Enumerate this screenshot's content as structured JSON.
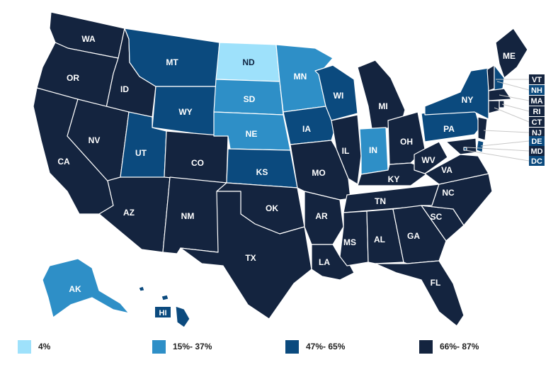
{
  "colors": {
    "bin1": "#9ee1fb",
    "bin2": "#2e8fc7",
    "bin3": "#0b4a7e",
    "bin4": "#14243f",
    "border": "#ffffff",
    "leader": "#c9c9c9"
  },
  "legend": [
    {
      "label": "4%",
      "color_key": "bin1"
    },
    {
      "label": "15%- 37%",
      "color_key": "bin2"
    },
    {
      "label": "47%- 65%",
      "color_key": "bin3"
    },
    {
      "label": "66%- 87%",
      "color_key": "bin4"
    }
  ],
  "states": [
    {
      "abbr": "WA",
      "bin": 4
    },
    {
      "abbr": "OR",
      "bin": 4
    },
    {
      "abbr": "CA",
      "bin": 4
    },
    {
      "abbr": "ID",
      "bin": 4
    },
    {
      "abbr": "NV",
      "bin": 4
    },
    {
      "abbr": "AZ",
      "bin": 4
    },
    {
      "abbr": "MT",
      "bin": 3
    },
    {
      "abbr": "WY",
      "bin": 3
    },
    {
      "abbr": "UT",
      "bin": 3
    },
    {
      "abbr": "CO",
      "bin": 4
    },
    {
      "abbr": "NM",
      "bin": 4
    },
    {
      "abbr": "ND",
      "bin": 1
    },
    {
      "abbr": "SD",
      "bin": 2
    },
    {
      "abbr": "NE",
      "bin": 2
    },
    {
      "abbr": "KS",
      "bin": 3
    },
    {
      "abbr": "OK",
      "bin": 4
    },
    {
      "abbr": "TX",
      "bin": 4
    },
    {
      "abbr": "MN",
      "bin": 2
    },
    {
      "abbr": "IA",
      "bin": 3
    },
    {
      "abbr": "MO",
      "bin": 4
    },
    {
      "abbr": "AR",
      "bin": 4
    },
    {
      "abbr": "LA",
      "bin": 4
    },
    {
      "abbr": "WI",
      "bin": 3
    },
    {
      "abbr": "IL",
      "bin": 4
    },
    {
      "abbr": "MI",
      "bin": 4
    },
    {
      "abbr": "IN",
      "bin": 2
    },
    {
      "abbr": "OH",
      "bin": 4
    },
    {
      "abbr": "KY",
      "bin": 4
    },
    {
      "abbr": "TN",
      "bin": 4
    },
    {
      "abbr": "MS",
      "bin": 4
    },
    {
      "abbr": "AL",
      "bin": 4
    },
    {
      "abbr": "GA",
      "bin": 4
    },
    {
      "abbr": "FL",
      "bin": 4
    },
    {
      "abbr": "SC",
      "bin": 4
    },
    {
      "abbr": "NC",
      "bin": 4
    },
    {
      "abbr": "VA",
      "bin": 4
    },
    {
      "abbr": "WV",
      "bin": 4
    },
    {
      "abbr": "PA",
      "bin": 3
    },
    {
      "abbr": "NY",
      "bin": 3
    },
    {
      "abbr": "ME",
      "bin": 4
    },
    {
      "abbr": "VT",
      "bin": 4
    },
    {
      "abbr": "NH",
      "bin": 3
    },
    {
      "abbr": "MA",
      "bin": 4
    },
    {
      "abbr": "RI",
      "bin": 4
    },
    {
      "abbr": "CT",
      "bin": 4
    },
    {
      "abbr": "NJ",
      "bin": 4
    },
    {
      "abbr": "DE",
      "bin": 3
    },
    {
      "abbr": "MD",
      "bin": 4
    },
    {
      "abbr": "DC",
      "bin": 3
    },
    {
      "abbr": "AK",
      "bin": 2
    },
    {
      "abbr": "HI",
      "bin": 3
    }
  ]
}
